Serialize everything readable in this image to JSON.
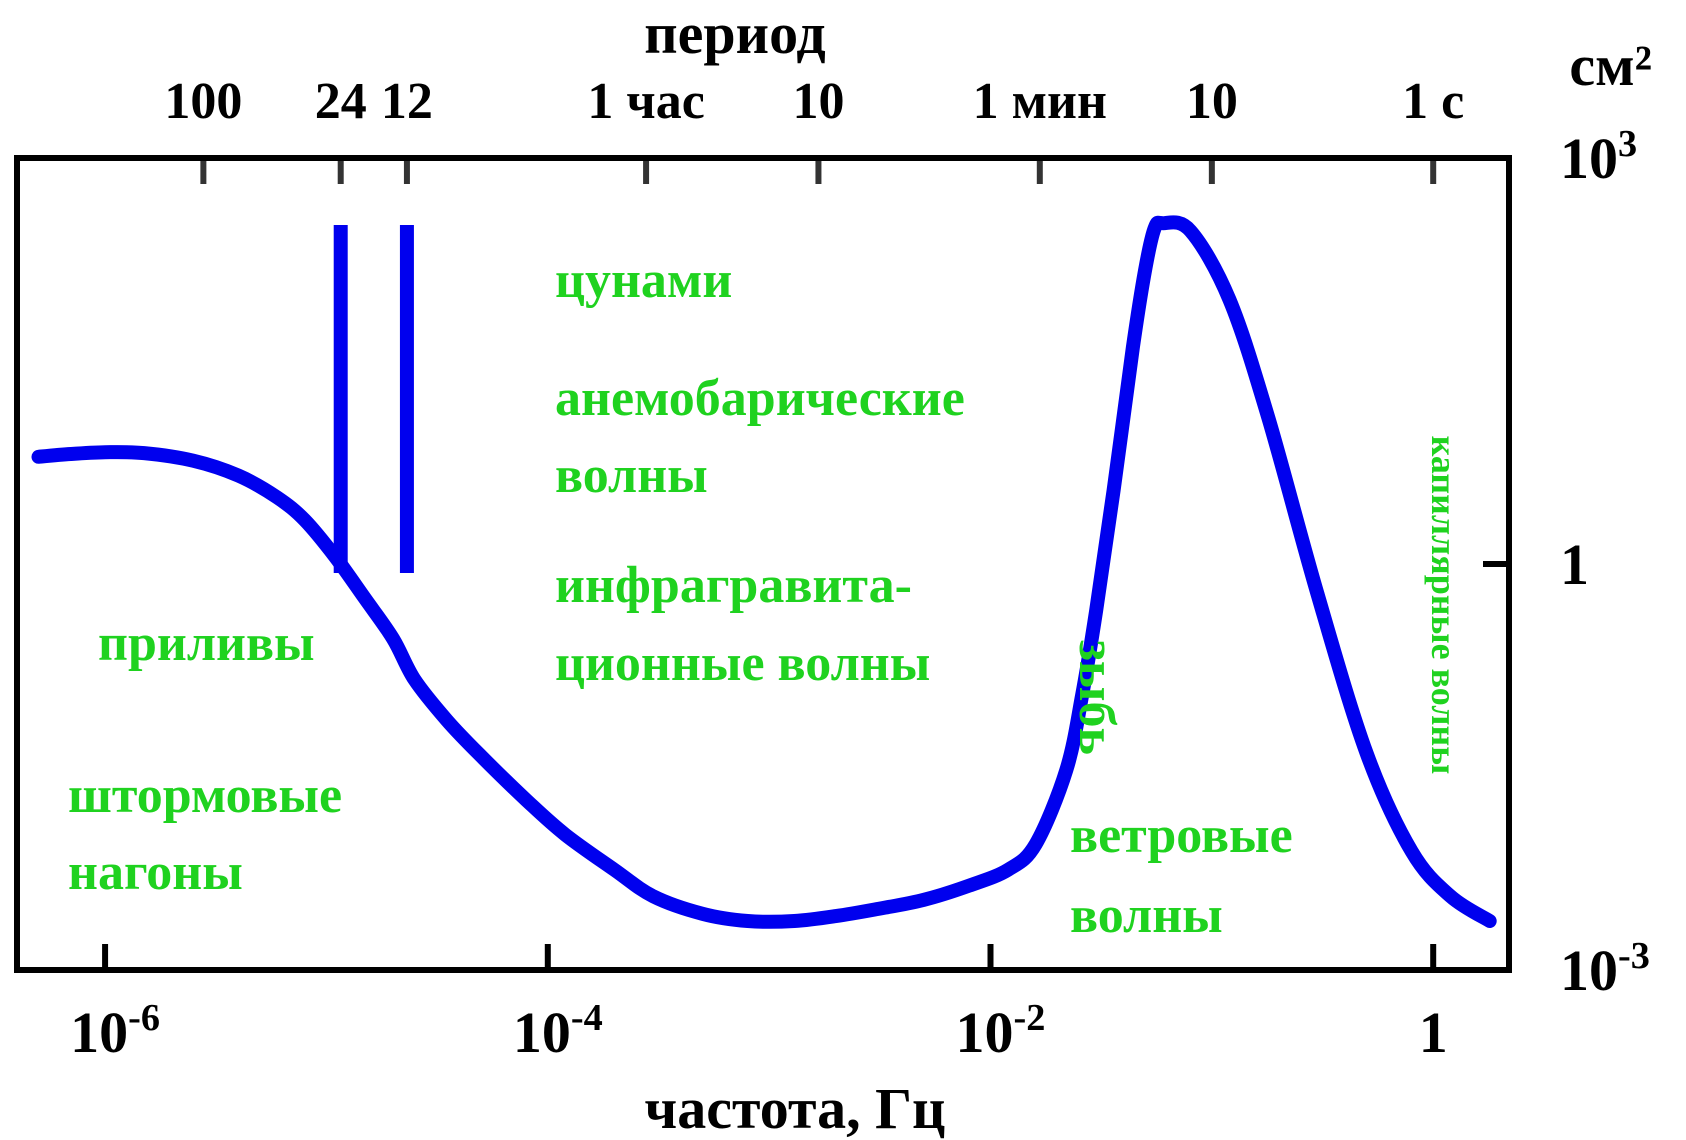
{
  "chart_data": {
    "type": "line",
    "title": "",
    "xlabel": "частота, Гц",
    "top_axis_title": "период",
    "y_unit": "см²",
    "x_scale": "log",
    "y_scale": "log",
    "xlim": [
      4e-07,
      2.2
    ],
    "ylim": [
      0.001,
      1000
    ],
    "grid": false,
    "x_ticks": [
      {
        "value": 1e-06,
        "base": "10",
        "exp": "-6"
      },
      {
        "value": 0.0001,
        "base": "10",
        "exp": "-4"
      },
      {
        "value": 0.01,
        "base": "10",
        "exp": "-2"
      },
      {
        "value": 1,
        "base": "1",
        "exp": ""
      }
    ],
    "y_ticks": [
      {
        "value": 1000,
        "base": "10",
        "exp": "3"
      },
      {
        "value": 1,
        "base": "1",
        "exp": ""
      },
      {
        "value": 0.001,
        "base": "10",
        "exp": "-3"
      }
    ],
    "top_ticks": [
      {
        "freq": 2.78e-06,
        "label": "100"
      },
      {
        "freq": 1.16e-05,
        "label": "24"
      },
      {
        "freq": 2.31e-05,
        "label": "12"
      },
      {
        "freq": 0.000278,
        "label": "1 час"
      },
      {
        "freq": 0.00167,
        "label": "10"
      },
      {
        "freq": 0.0167,
        "label": "1 мин"
      },
      {
        "freq": 0.1,
        "label": "10"
      },
      {
        "freq": 1,
        "label": "1 с"
      }
    ],
    "tidal_lines": [
      1.16e-05,
      2.31e-05
    ],
    "series": [
      {
        "color": "#0000ee",
        "x": [
          5e-07,
          7e-07,
          1e-06,
          1.5e-06,
          2.5e-06,
          4e-06,
          6e-06,
          8e-06,
          1.1e-05,
          1.5e-05,
          2e-05,
          2.5e-05,
          3.5e-05,
          5e-05,
          8e-05,
          0.00012,
          0.0002,
          0.0003,
          0.0005,
          0.0008,
          0.0013,
          0.002,
          0.003,
          0.005,
          0.008,
          0.012,
          0.016,
          0.022,
          0.026,
          0.03,
          0.036,
          0.044,
          0.05,
          0.055,
          0.06,
          0.08,
          0.12,
          0.18,
          0.3,
          0.5,
          0.8,
          1.2,
          1.8
        ],
        "y": [
          6.2,
          6.5,
          6.7,
          6.6,
          5.8,
          4.5,
          3.1,
          2.1,
          1.12,
          0.55,
          0.28,
          0.14,
          0.07,
          0.038,
          0.018,
          0.01,
          0.0055,
          0.0035,
          0.0026,
          0.0023,
          0.0023,
          0.0025,
          0.0028,
          0.0033,
          0.0042,
          0.0055,
          0.0085,
          0.03,
          0.11,
          0.45,
          3.5,
          40,
          150,
          300,
          330,
          290,
          90,
          12,
          0.6,
          0.04,
          0.0075,
          0.0035,
          0.0023
        ]
      }
    ],
    "annotations": [
      {
        "id": "tsunami",
        "lines": [
          "цунами"
        ]
      },
      {
        "id": "anemobaric",
        "lines": [
          "анемобарические",
          "волны"
        ]
      },
      {
        "id": "infragravity",
        "lines": [
          "инфрагравита-",
          "ционные волны"
        ]
      },
      {
        "id": "tides",
        "lines": [
          "приливы"
        ]
      },
      {
        "id": "storm-surges",
        "lines": [
          "штормовые",
          "нагоны"
        ]
      },
      {
        "id": "swell",
        "lines": [
          "зыбь"
        ]
      },
      {
        "id": "wind-waves",
        "lines": [
          "ветровые",
          "волны"
        ]
      },
      {
        "id": "capillary",
        "lines": [
          "капиллярные волны"
        ]
      }
    ],
    "colors": {
      "curve": "#0000ee",
      "annotation": "#1fd21f",
      "axes": "#000000",
      "tick": "#333333"
    }
  }
}
